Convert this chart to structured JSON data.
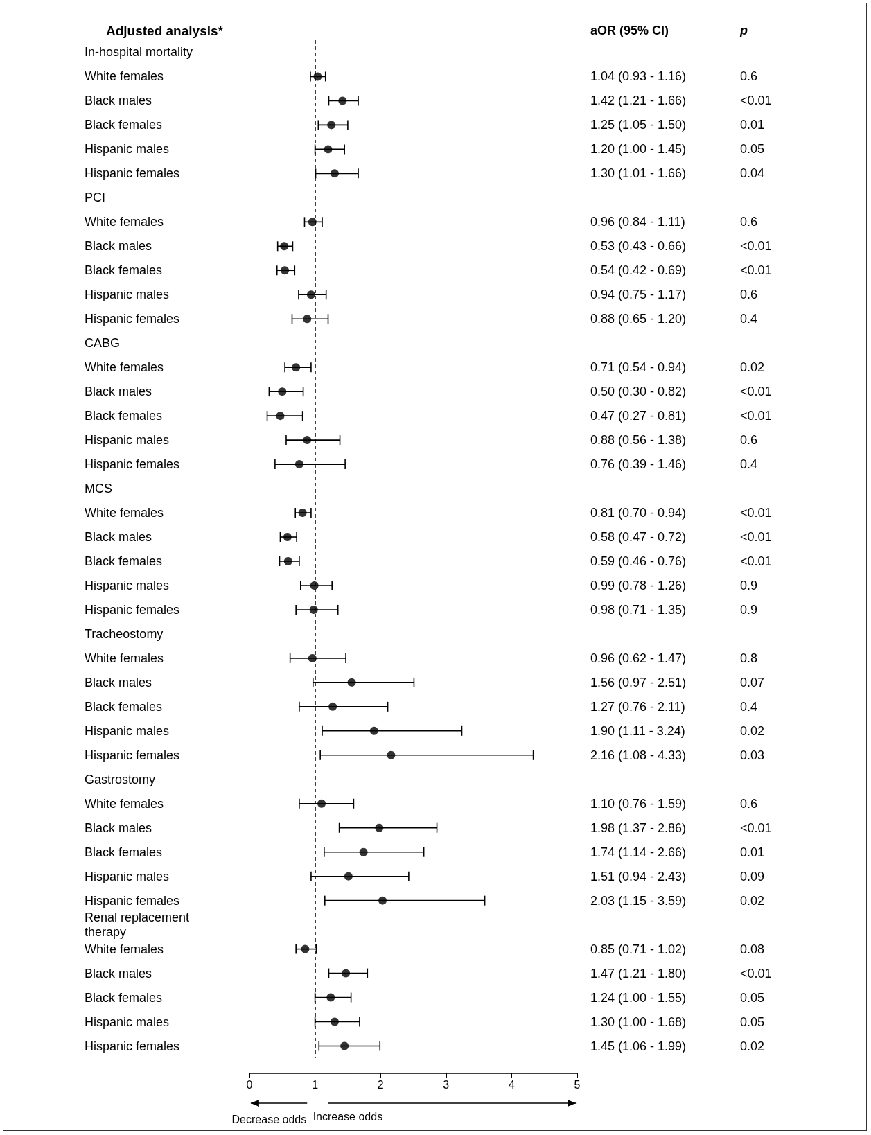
{
  "chart_data": {
    "type": "scatter",
    "orientation": "horizontal",
    "title": "Adjusted analysis*",
    "categories": [
      "In-hospital mortality",
      "White females",
      "Black males",
      "Black females",
      "Hispanic males",
      "Hispanic females",
      "PCI",
      "White females",
      "Black males",
      "Black females",
      "Hispanic males",
      "Hispanic females",
      "CABG",
      "White females",
      "Black males",
      "Black females",
      "Hispanic males",
      "Hispanic females",
      "MCS",
      "White females",
      "Black males",
      "Black females",
      "Hispanic males",
      "Hispanic females",
      "Tracheostomy",
      "White females",
      "Black males",
      "Black females",
      "Hispanic males",
      "Hispanic females",
      "Gastrostomy",
      "White females",
      "Black males",
      "Black females",
      "Hispanic males",
      "Hispanic females",
      "Renal replacement therapy",
      "White females",
      "Black males",
      "Black females",
      "Hispanic males",
      "Hispanic females"
    ],
    "series": [
      {
        "color": "#000000",
        "values": [
          null,
          1.04,
          1.42,
          1.25,
          1.2,
          1.3,
          null,
          0.96,
          0.53,
          0.54,
          0.94,
          0.88,
          null,
          0.71,
          0.5,
          0.47,
          0.88,
          0.76,
          null,
          0.81,
          0.58,
          0.59,
          0.99,
          0.98,
          null,
          0.96,
          1.56,
          1.27,
          1.9,
          2.16,
          null,
          1.1,
          1.98,
          1.74,
          1.51,
          2.03,
          null,
          0.85,
          1.47,
          1.24,
          1.3,
          1.45
        ],
        "errors": [
          null,
          [
            0.93,
            1.16
          ],
          [
            1.21,
            1.66
          ],
          [
            1.05,
            1.5
          ],
          [
            1.0,
            1.45
          ],
          [
            1.01,
            1.66
          ],
          null,
          [
            0.84,
            1.11
          ],
          [
            0.43,
            0.66
          ],
          [
            0.42,
            0.69
          ],
          [
            0.75,
            1.17
          ],
          [
            0.65,
            1.2
          ],
          null,
          [
            0.54,
            0.94
          ],
          [
            0.3,
            0.82
          ],
          [
            0.27,
            0.81
          ],
          [
            0.56,
            1.38
          ],
          [
            0.39,
            1.46
          ],
          null,
          [
            0.7,
            0.94
          ],
          [
            0.47,
            0.72
          ],
          [
            0.46,
            0.76
          ],
          [
            0.78,
            1.26
          ],
          [
            0.71,
            1.35
          ],
          null,
          [
            0.62,
            1.47
          ],
          [
            0.97,
            2.51
          ],
          [
            0.76,
            2.11
          ],
          [
            1.11,
            3.24
          ],
          [
            1.08,
            4.33
          ],
          null,
          [
            0.76,
            1.59
          ],
          [
            1.37,
            2.86
          ],
          [
            1.14,
            2.66
          ],
          [
            0.94,
            2.43
          ],
          [
            1.15,
            3.59
          ],
          null,
          [
            0.71,
            1.02
          ],
          [
            1.21,
            1.8
          ],
          [
            1.0,
            1.55
          ],
          [
            1.0,
            1.68
          ],
          [
            1.06,
            1.99
          ]
        ],
        "value_labels": [
          null,
          "1.04 (0.93 - 1.16)",
          "1.42 (1.21 - 1.66)",
          "1.25 (1.05 - 1.50)",
          "1.20 (1.00 - 1.45)",
          "1.30 (1.01 - 1.66)",
          null,
          "0.96 (0.84 - 1.11)",
          "0.53 (0.43 - 0.66)",
          "0.54 (0.42 - 0.69)",
          "0.94 (0.75 - 1.17)",
          "0.88 (0.65 - 1.20)",
          null,
          "0.71 (0.54 - 0.94)",
          "0.50 (0.30 - 0.82)",
          "0.47 (0.27 - 0.81)",
          "0.88 (0.56 - 1.38)",
          "0.76 (0.39 - 1.46)",
          null,
          "0.81 (0.70 - 0.94)",
          "0.58 (0.47 - 0.72)",
          "0.59 (0.46 - 0.76)",
          "0.99 (0.78 - 1.26)",
          "0.98 (0.71 - 1.35)",
          null,
          "0.96 (0.62 - 1.47)",
          "1.56 (0.97 - 2.51)",
          "1.27 (0.76 - 2.11)",
          "1.90 (1.11 - 3.24)",
          "2.16 (1.08 - 4.33)",
          null,
          "1.10 (0.76 - 1.59)",
          "1.98 (1.37 - 2.86)",
          "1.74 (1.14 - 2.66)",
          "1.51 (0.94 - 2.43)",
          "2.03 (1.15 - 3.59)",
          null,
          "0.85 (0.71 - 1.02)",
          "1.47 (1.21 - 1.80)",
          "1.24 (1.00 - 1.55)",
          "1.30 (1.00 - 1.68)",
          "1.45 (1.06 - 1.99)"
        ]
      }
    ],
    "annotations": [
      "aOR (95% CI)",
      "p",
      "Decrease odds",
      "Increase odds",
      "0.6",
      "<0.01",
      "0.01",
      "0.05",
      "0.04",
      "0.6",
      "<0.01",
      "<0.01",
      "0.6",
      "0.4",
      "0.02",
      "<0.01",
      "<0.01",
      "0.6",
      "0.4",
      "<0.01",
      "<0.01",
      "<0.01",
      "0.9",
      "0.9",
      "0.8",
      "0.07",
      "0.4",
      "0.02",
      "0.03",
      "0.6",
      "<0.01",
      "0.01",
      "0.09",
      "0.02",
      "0.08",
      "<0.01",
      "0.05",
      "0.05",
      "0.02"
    ],
    "xlim": [
      0,
      5
    ],
    "xticks": [
      0,
      1,
      2,
      3,
      4,
      5
    ],
    "ref_lines": [
      {
        "axis": "x",
        "value": 1,
        "line_style": "dashed",
        "color": "#000000"
      }
    ],
    "marker": "circle",
    "grid": false
  }
}
